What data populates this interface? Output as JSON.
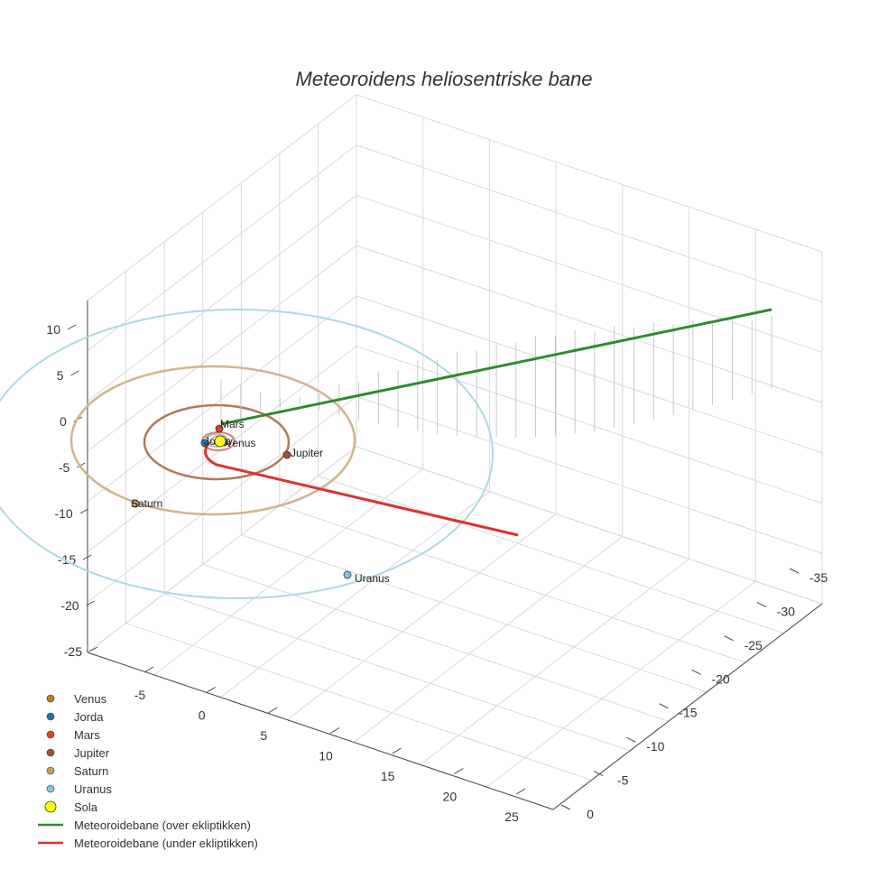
{
  "chart_data": {
    "type": "scatter3d",
    "title": "Meteoroidens heliosentriske bane",
    "z_ticks": [
      "10",
      "5",
      "0",
      "-5",
      "-10",
      "-15",
      "-20",
      "-25"
    ],
    "x_ticks": [
      "-5",
      "0",
      "5",
      "10",
      "15",
      "20",
      "25"
    ],
    "y_ticks": [
      "-35",
      "-30",
      "-25",
      "-20",
      "-15",
      "-10",
      "-5",
      "0"
    ],
    "planets": [
      {
        "name": "Venus",
        "color": "#c77a1f",
        "label": "Venus"
      },
      {
        "name": "Jorda",
        "color": "#1f77b4",
        "label": "Jorda"
      },
      {
        "name": "Mars",
        "color": "#d9451f",
        "label": "Mars"
      },
      {
        "name": "Jupiter",
        "color": "#a0522d",
        "label": "Jupiter"
      },
      {
        "name": "Saturn",
        "color": "#cd9a6b",
        "label": "Saturn"
      },
      {
        "name": "Uranus",
        "color": "#7ec8e3",
        "label": "Uranus"
      }
    ],
    "orbit_colors": {
      "Saturn": "#d2b48c",
      "Jupiter": "#b07a5a",
      "Uranus": "#add8e6",
      "Mars": "#e07a6a",
      "Jorda": "#8ab4d8",
      "Venus": "#e0a060"
    },
    "sun": {
      "name": "Sola",
      "color": "#ffff00"
    },
    "trajectory": [
      {
        "name": "Meteoroidebane (over ekliptikken)",
        "color": "#2e8b2e"
      },
      {
        "name": "Meteoroidebane (under ekliptikken)",
        "color": "#e03030"
      }
    ],
    "legend": [
      {
        "label": "Venus",
        "kind": "dot",
        "color": "#c77a1f"
      },
      {
        "label": "Jorda",
        "kind": "dot",
        "color": "#1f77b4"
      },
      {
        "label": "Mars",
        "kind": "dot",
        "color": "#d9451f"
      },
      {
        "label": "Jupiter",
        "kind": "dot",
        "color": "#a0522d"
      },
      {
        "label": "Saturn",
        "kind": "dot",
        "color": "#cd9a6b"
      },
      {
        "label": "Uranus",
        "kind": "dot",
        "color": "#7ec8e3"
      },
      {
        "label": "Sola",
        "kind": "sun",
        "color": "#ffff00"
      },
      {
        "label": "Meteoroidebane (over ekliptikken)",
        "kind": "line",
        "color": "#2e8b2e"
      },
      {
        "label": "Meteoroidebane (under ekliptikken)",
        "kind": "line",
        "color": "#e03030"
      }
    ],
    "grid": true,
    "legend_position": "bottom-left"
  }
}
